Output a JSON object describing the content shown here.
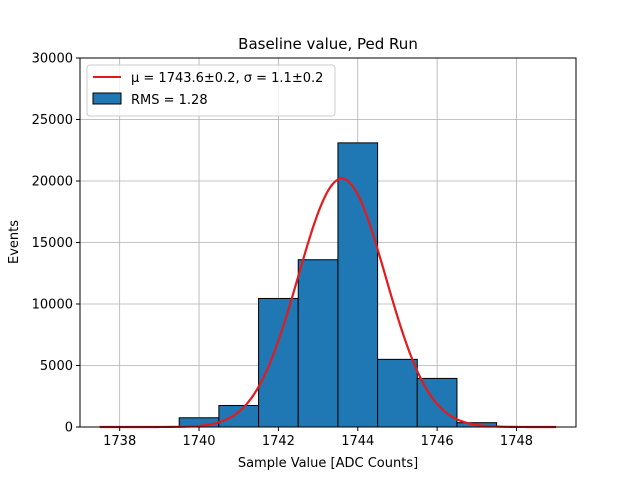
{
  "chart_data": {
    "type": "bar",
    "title": "Baseline value, Ped Run",
    "xlabel": "Sample Value [ADC Counts]",
    "ylabel": "Events",
    "xlim": [
      1737,
      1749.5
    ],
    "ylim": [
      0,
      30000
    ],
    "xticks": [
      1738,
      1740,
      1742,
      1744,
      1746,
      1748
    ],
    "yticks": [
      0,
      5000,
      10000,
      15000,
      20000,
      25000,
      30000
    ],
    "grid": true,
    "legend_position": "upper-left",
    "bar_color": "#1f77b4",
    "fit_color": "#e41a1c",
    "histogram": {
      "name": "RMS = 1.28",
      "bins": [
        {
          "x0": 1737.5,
          "x1": 1738.5,
          "count": 20
        },
        {
          "x0": 1738.5,
          "x1": 1739.5,
          "count": 40
        },
        {
          "x0": 1739.5,
          "x1": 1740.5,
          "count": 750
        },
        {
          "x0": 1740.5,
          "x1": 1741.5,
          "count": 1750
        },
        {
          "x0": 1741.5,
          "x1": 1742.5,
          "count": 10450
        },
        {
          "x0": 1742.5,
          "x1": 1743.5,
          "count": 13600
        },
        {
          "x0": 1743.5,
          "x1": 1744.5,
          "count": 23100
        },
        {
          "x0": 1744.5,
          "x1": 1745.5,
          "count": 5500
        },
        {
          "x0": 1745.5,
          "x1": 1746.5,
          "count": 3950
        },
        {
          "x0": 1746.5,
          "x1": 1747.5,
          "count": 350
        },
        {
          "x0": 1747.5,
          "x1": 1748.5,
          "count": 30
        }
      ]
    },
    "fit": {
      "name": "μ = 1743.6±0.2, σ = 1.1±0.2",
      "mu": 1743.6,
      "sigma": 1.1,
      "amplitude": 20200,
      "x_range": [
        1737.5,
        1749
      ]
    }
  }
}
